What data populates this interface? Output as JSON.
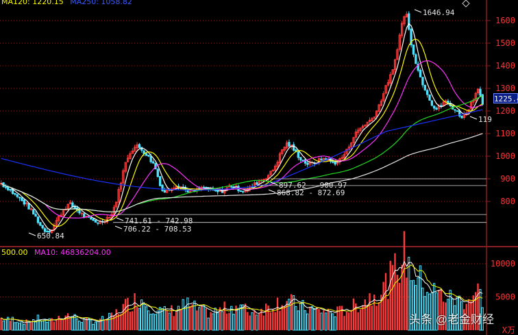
{
  "top_header": {
    "ma120": "MA120: 1220.15",
    "ma250": "MA250: 1058.82"
  },
  "vol_header": {
    "vol": "500.00",
    "ma10": "MA10: 46836204.00"
  },
  "price_axis": [
    "1600",
    "1500",
    "1400",
    "1300",
    "1200",
    "1100",
    "1000",
    "900",
    "800"
  ],
  "vol_axis": [
    "10000",
    "5000"
  ],
  "vol_axis_unit": "X万",
  "current_price": "1225.4",
  "annotations": {
    "peak": "1646.94",
    "low": "650.84",
    "zone1": "897.62 - 900.97",
    "zone2": "868.82 - 872.69",
    "zone3": "741.61 - 742.98",
    "zone4": "706.22 - 708.53",
    "right": "119"
  },
  "watermark": "头条 @老金财经",
  "colors": {
    "up": "#ff3b3b",
    "down": "#4fe3ff",
    "ma5": "#ffffff",
    "ma10": "#ffff00",
    "ma20": "#ff33ff",
    "ma60": "#22dd22",
    "ma120": "#e8e8e8",
    "ma250": "#1a33ff",
    "grid": "#8a1f1f"
  },
  "chart_data": {
    "type": "candlestick",
    "title": "",
    "y_range": [
      600,
      1700
    ],
    "price_ticks": [
      800,
      900,
      1000,
      1100,
      1200,
      1300,
      1400,
      1500,
      1600
    ],
    "vol_ticks": [
      5000,
      10000
    ],
    "close_path": [
      880,
      865,
      855,
      832,
      818,
      800,
      785,
      760,
      735,
      700,
      675,
      668,
      680,
      715,
      745,
      770,
      790,
      775,
      760,
      742,
      728,
      718,
      712,
      706,
      715,
      730,
      745,
      800,
      880,
      960,
      1010,
      1035,
      1045,
      1030,
      1010,
      985,
      960,
      895,
      840,
      850,
      860,
      872,
      868,
      855,
      846,
      842,
      850,
      858,
      860,
      852,
      846,
      842,
      848,
      858,
      870,
      862,
      852,
      848,
      855,
      868,
      882,
      895,
      905,
      920,
      945,
      985,
      1030,
      1055,
      1045,
      1020,
      995,
      978,
      965,
      968,
      975,
      985,
      992,
      980,
      970,
      975,
      995,
      1020,
      1060,
      1095,
      1120,
      1135,
      1150,
      1165,
      1195,
      1240,
      1290,
      1340,
      1380,
      1480,
      1580,
      1646,
      1520,
      1440,
      1370,
      1320,
      1280,
      1235,
      1205,
      1220,
      1245,
      1230,
      1215,
      1195,
      1175,
      1185,
      1225,
      1260,
      1310,
      1225
    ],
    "vol_path": [
      1800,
      1600,
      1500,
      1700,
      1400,
      1300,
      1200,
      1500,
      1600,
      1800,
      1400,
      1300,
      1500,
      1900,
      2100,
      2400,
      2200,
      1900,
      1700,
      1500,
      1400,
      1300,
      1400,
      1500,
      1700,
      1900,
      2300,
      2900,
      3400,
      3900,
      4200,
      4600,
      4800,
      4300,
      3900,
      3500,
      3100,
      2800,
      2700,
      2900,
      3100,
      3400,
      3600,
      3800,
      3500,
      3200,
      2900,
      2700,
      2600,
      2700,
      2900,
      3100,
      3300,
      3500,
      3700,
      3500,
      3200,
      2900,
      2800,
      3000,
      3200,
      3400,
      3700,
      4000,
      4300,
      4500,
      4400,
      4100,
      3800,
      3500,
      3300,
      3200,
      3100,
      3000,
      2900,
      2800,
      2700,
      2700,
      2800,
      3000,
      3200,
      3500,
      3800,
      4200,
      4600,
      5000,
      5400,
      5800,
      6400,
      7000,
      8000,
      9200,
      10400,
      11400,
      9600,
      8600,
      7800,
      7200,
      6600,
      6100,
      5700,
      5400,
      5200,
      4900,
      4700,
      4500,
      4400,
      4600,
      4900,
      5300,
      5900,
      4800
    ]
  }
}
